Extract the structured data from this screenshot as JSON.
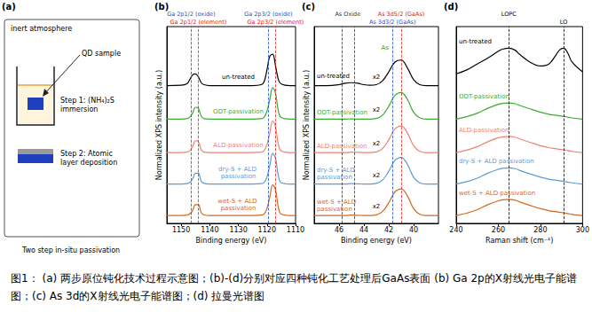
{
  "panel_a": {
    "title": "(a)",
    "frame_label": "inert atmosphere",
    "sample_label": "QD sample",
    "step1": "Step 1: (NH₄)₂S immersion",
    "step2": "Step 2: Atomic layer deposition",
    "caption": "Two step in-situ passivation"
  },
  "chart_data": [
    {
      "type": "line",
      "title": "(b)",
      "x_label": "Binding energy (eV)",
      "y_label": "Normalized XPS intensity (a.u.)",
      "xlim": [
        1155,
        1110
      ],
      "xticks": [
        1150,
        1140,
        1130,
        1120,
        1110
      ],
      "ylim": [
        0,
        10
      ],
      "tick_labels": "x",
      "grid": false,
      "x": [
        1155,
        1150,
        1148,
        1147,
        1146,
        1145,
        1144,
        1143,
        1142,
        1140,
        1135,
        1130,
        1125,
        1122,
        1121,
        1120,
        1119,
        1118,
        1117,
        1116,
        1115,
        1112,
        1110
      ],
      "series": [
        {
          "name": "un-treated",
          "color": "#000000",
          "values": [
            7.0,
            7.02,
            7.1,
            7.3,
            7.55,
            7.6,
            7.45,
            7.15,
            7.05,
            7.0,
            7.0,
            7.0,
            7.0,
            7.05,
            7.2,
            7.8,
            8.5,
            8.6,
            8.0,
            7.3,
            7.08,
            7.0,
            7.0
          ]
        },
        {
          "name": "ODT-passivation",
          "color": "#3aaa35",
          "values": [
            5.3,
            5.3,
            5.32,
            5.4,
            5.6,
            5.9,
            5.85,
            5.45,
            5.32,
            5.3,
            5.3,
            5.3,
            5.3,
            5.32,
            5.4,
            5.7,
            6.3,
            6.9,
            6.6,
            5.7,
            5.38,
            5.3,
            5.3
          ]
        },
        {
          "name": "ALD-passivation",
          "color": "#f08070",
          "values": [
            3.6,
            3.6,
            3.62,
            3.7,
            3.9,
            4.2,
            4.15,
            3.75,
            3.62,
            3.6,
            3.6,
            3.6,
            3.6,
            3.62,
            3.7,
            4.0,
            4.6,
            5.2,
            4.9,
            4.0,
            3.68,
            3.6,
            3.6
          ]
        },
        {
          "name": "dry-S + ALD passivation",
          "color": "#5b9bd5",
          "values": [
            2.0,
            2.0,
            2.02,
            2.08,
            2.25,
            2.55,
            2.55,
            2.15,
            2.03,
            2.0,
            2.0,
            2.0,
            2.0,
            2.02,
            2.08,
            2.35,
            2.95,
            3.55,
            3.3,
            2.4,
            2.07,
            2.0,
            2.0
          ]
        },
        {
          "name": "wet-S + ALD passivation",
          "color": "#d2691e",
          "values": [
            0.4,
            0.4,
            0.42,
            0.48,
            0.65,
            0.95,
            0.95,
            0.55,
            0.43,
            0.4,
            0.4,
            0.4,
            0.4,
            0.42,
            0.48,
            0.75,
            1.35,
            1.95,
            1.7,
            0.8,
            0.47,
            0.4,
            0.4
          ]
        }
      ],
      "annotations": [
        {
          "text": "Ga 2p1/2 (oxide)",
          "x": [
            1146.5
          ],
          "color": "#1f4fd1",
          "line_style": "dashed"
        },
        {
          "text": "Ga 2p1/2 (element)",
          "x": [
            1144
          ],
          "color": "#e0201b",
          "line_style": "dashed"
        },
        {
          "text": "Ga 2p3/2 (oxide)",
          "x": [
            1119.5
          ],
          "color": "#1f4fd1",
          "line_style": "dashed"
        },
        {
          "text": "Ga 2p3/2 (element)",
          "x": [
            1117
          ],
          "color": "#e0201b",
          "line_style": "dashed"
        }
      ]
    },
    {
      "type": "line",
      "title": "(c)",
      "x_label": "Binding energy (eV)",
      "y_label": "Normalized XPS intensity (a.u.)",
      "xlim": [
        48,
        38
      ],
      "xticks": [
        46,
        44,
        42,
        40
      ],
      "ylim": [
        0,
        10
      ],
      "tick_labels": "x",
      "grid": false,
      "x": [
        48,
        47,
        46,
        45.5,
        45,
        44.5,
        44,
        43.5,
        43,
        42.5,
        42,
        41.5,
        41,
        40.5,
        40,
        39.5,
        39,
        38
      ],
      "series": [
        {
          "name": "un-treated",
          "color": "#000000",
          "values": [
            7.0,
            7.0,
            7.05,
            7.12,
            7.15,
            7.12,
            7.05,
            7.02,
            7.05,
            7.25,
            7.7,
            8.2,
            8.3,
            7.9,
            7.3,
            7.05,
            7.0,
            7.0
          ]
        },
        {
          "name": "ODT-passivation",
          "color": "#3aaa35",
          "values": [
            5.3,
            5.3,
            5.3,
            5.3,
            5.31,
            5.3,
            5.3,
            5.3,
            5.33,
            5.5,
            5.95,
            6.5,
            6.65,
            6.3,
            5.65,
            5.36,
            5.3,
            5.3
          ]
        },
        {
          "name": "ALD-passivation",
          "color": "#f08070",
          "values": [
            3.6,
            3.6,
            3.6,
            3.6,
            3.62,
            3.61,
            3.6,
            3.6,
            3.63,
            3.8,
            4.25,
            4.8,
            4.95,
            4.6,
            3.95,
            3.66,
            3.6,
            3.6
          ]
        },
        {
          "name": "dry-S + ALD passivation",
          "color": "#5b9bd5",
          "values": [
            2.0,
            2.0,
            2.0,
            2.0,
            2.02,
            2.01,
            2.0,
            2.0,
            2.03,
            2.2,
            2.65,
            3.2,
            3.35,
            3.0,
            2.35,
            2.06,
            2.0,
            2.0
          ]
        },
        {
          "name": "wet-S + ALD passivation",
          "color": "#d2691e",
          "values": [
            0.4,
            0.4,
            0.4,
            0.4,
            0.42,
            0.41,
            0.4,
            0.4,
            0.43,
            0.6,
            1.05,
            1.6,
            1.75,
            1.4,
            0.75,
            0.46,
            0.4,
            0.4
          ]
        }
      ],
      "annotations": [
        {
          "text": "As Oxide",
          "x": [
            45.8,
            44.8
          ],
          "color": "#333333",
          "line_style": "dashed"
        },
        {
          "text": "As 3d3/2 (GaAs)",
          "x": [
            41.7
          ],
          "color": "#1f4fd1",
          "line_style": "dashed"
        },
        {
          "text": "As 3d5/2 (GaAs)",
          "x": [
            41.0
          ],
          "color": "#e0201b",
          "line_style": "dashed"
        },
        {
          "text": "As",
          "x": [
            42.3
          ],
          "y": 8.9,
          "color": "#2ca02c"
        },
        {
          "text": "x2",
          "x": [
            43.0
          ],
          "y": 7.45,
          "color": "#000000"
        },
        {
          "text": "x2",
          "x": [
            43.0
          ],
          "y": 5.75,
          "color": "#000000"
        },
        {
          "text": "x2",
          "x": [
            43.0
          ],
          "y": 4.05,
          "color": "#000000"
        },
        {
          "text": "x2",
          "x": [
            43.0
          ],
          "y": 2.45,
          "color": "#000000"
        },
        {
          "text": "x2",
          "x": [
            43.0
          ],
          "y": 0.85,
          "color": "#000000"
        }
      ]
    },
    {
      "type": "line",
      "title": "(d)",
      "x_label": "Raman shift (cm⁻¹)",
      "xlim": [
        240,
        300
      ],
      "xticks": [
        240,
        260,
        280,
        300
      ],
      "ylim": [
        0,
        10
      ],
      "tick_labels": "x",
      "grid": false,
      "x": [
        240,
        245,
        250,
        255,
        260,
        262,
        265,
        268,
        270,
        275,
        280,
        284,
        287,
        289,
        291,
        293,
        295,
        300
      ],
      "series": [
        {
          "name": "un-treated",
          "color": "#000000",
          "values": [
            7.6,
            7.8,
            8.1,
            8.4,
            8.75,
            8.85,
            8.9,
            8.8,
            8.6,
            8.2,
            8.0,
            8.1,
            8.5,
            8.8,
            8.9,
            8.65,
            8.2,
            7.7
          ]
        },
        {
          "name": "ODT-passivation",
          "color": "#3aaa35",
          "values": [
            5.3,
            5.42,
            5.6,
            5.85,
            6.05,
            6.1,
            6.12,
            6.08,
            6.0,
            5.82,
            5.65,
            5.55,
            5.5,
            5.47,
            5.44,
            5.4,
            5.36,
            5.3
          ]
        },
        {
          "name": "ALD-passivation",
          "color": "#f08070",
          "values": [
            3.6,
            3.72,
            3.9,
            4.15,
            4.35,
            4.4,
            4.42,
            4.38,
            4.3,
            4.12,
            3.95,
            3.85,
            3.8,
            3.77,
            3.74,
            3.7,
            3.66,
            3.6
          ]
        },
        {
          "name": "dry-S + ALD passivation",
          "color": "#5b9bd5",
          "values": [
            2.0,
            2.12,
            2.3,
            2.55,
            2.75,
            2.8,
            2.82,
            2.78,
            2.7,
            2.52,
            2.35,
            2.25,
            2.2,
            2.17,
            2.14,
            2.1,
            2.06,
            2.0
          ]
        },
        {
          "name": "wet-S + ALD passivation",
          "color": "#d2691e",
          "values": [
            0.4,
            0.52,
            0.7,
            0.95,
            1.15,
            1.2,
            1.22,
            1.18,
            1.1,
            0.92,
            0.75,
            0.65,
            0.6,
            0.57,
            0.54,
            0.5,
            0.46,
            0.4
          ]
        }
      ],
      "annotations": [
        {
          "text": "LOPC",
          "x": [
            265
          ],
          "color": "#000000",
          "line_style": "dashed"
        },
        {
          "text": "LO",
          "x": [
            291
          ],
          "color": "#000000",
          "line_style": "dashed"
        }
      ]
    }
  ],
  "figure_caption": "图1： (a) 两步原位钝化技术过程示意图；(b)-(d)分别对应四种钝化工艺处理后GaAs表面 (b) Ga 2p的X射线光电子能谱图；(c) As 3d的X射线光电子能谱图；(d) 拉曼光谱图"
}
